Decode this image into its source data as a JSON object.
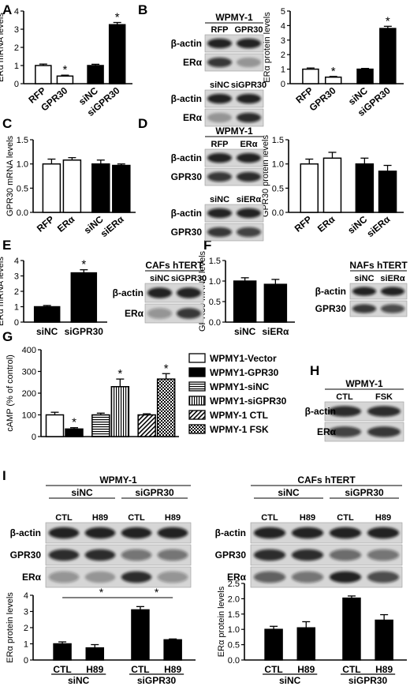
{
  "figure": {
    "panel_letters": [
      "A",
      "B",
      "C",
      "D",
      "E",
      "F",
      "G",
      "H",
      "I"
    ]
  },
  "colors": {
    "black": "#000000",
    "white": "#ffffff",
    "band": "#1a1a1a",
    "blot_bg": "#d8d8d8"
  },
  "chart_data": [
    {
      "id": "A",
      "type": "bar",
      "ylabel": "ERα mRNA levels",
      "ylim": [
        0,
        4
      ],
      "yticks": [
        0,
        1,
        2,
        3,
        4
      ],
      "categories": [
        "RFP",
        "GPR30",
        "siNC",
        "siGPR30"
      ],
      "values": [
        1.0,
        0.42,
        1.0,
        3.25
      ],
      "errors": [
        0.08,
        0.05,
        0.07,
        0.12
      ],
      "fills": [
        "white",
        "white",
        "black",
        "black"
      ],
      "significant": [
        false,
        true,
        false,
        true
      ]
    },
    {
      "id": "B",
      "type": "bar",
      "ylabel": "ERα protein levels",
      "ylim": [
        0,
        5
      ],
      "yticks": [
        0,
        1,
        2,
        3,
        4,
        5
      ],
      "categories": [
        "RFP",
        "GPR30",
        "siNC",
        "siGPR30"
      ],
      "values": [
        1.0,
        0.45,
        1.0,
        3.8
      ],
      "errors": [
        0.08,
        0.05,
        0.05,
        0.15
      ],
      "fills": [
        "white",
        "white",
        "black",
        "black"
      ],
      "significant": [
        false,
        true,
        false,
        true
      ]
    },
    {
      "id": "C",
      "type": "bar",
      "ylabel": "GPR30 mRNA levels",
      "ylim": [
        0,
        1.5
      ],
      "yticks": [
        "0.0",
        "0.5",
        "1.0",
        "1.5"
      ],
      "categories": [
        "RFP",
        "ERα",
        "siNC",
        "siERα"
      ],
      "values": [
        1.0,
        1.08,
        1.0,
        0.97
      ],
      "errors": [
        0.1,
        0.05,
        0.08,
        0.03
      ],
      "fills": [
        "white",
        "white",
        "black",
        "black"
      ],
      "significant": [
        false,
        false,
        false,
        false
      ]
    },
    {
      "id": "D",
      "type": "bar",
      "ylabel": "GPR30 protein levels",
      "ylim": [
        0,
        1.5
      ],
      "yticks": [
        "0.0",
        "0.5",
        "1.0",
        "1.5"
      ],
      "categories": [
        "RFP",
        "ERα",
        "siNC",
        "siERα"
      ],
      "values": [
        1.0,
        1.12,
        1.0,
        0.85
      ],
      "errors": [
        0.1,
        0.12,
        0.12,
        0.12
      ],
      "fills": [
        "white",
        "white",
        "black",
        "black"
      ],
      "significant": [
        false,
        false,
        false,
        false
      ]
    },
    {
      "id": "E",
      "type": "bar",
      "ylabel": "ERα mRNA levels",
      "ylim": [
        0,
        4
      ],
      "yticks": [
        0,
        1,
        2,
        3,
        4
      ],
      "categories": [
        "siNC",
        "siGPR30"
      ],
      "values": [
        1.0,
        3.2
      ],
      "errors": [
        0.08,
        0.2
      ],
      "fills": [
        "black",
        "black"
      ],
      "significant": [
        false,
        true
      ]
    },
    {
      "id": "F",
      "type": "bar",
      "ylabel": "GPR30 mRNA levels",
      "ylim": [
        0,
        1.5
      ],
      "yticks": [
        "0.0",
        "0.5",
        "1.0",
        "1.5"
      ],
      "categories": [
        "siNC",
        "siERα"
      ],
      "values": [
        1.0,
        0.92
      ],
      "errors": [
        0.08,
        0.12
      ],
      "fills": [
        "black",
        "black"
      ],
      "significant": [
        false,
        false
      ]
    },
    {
      "id": "G",
      "type": "bar",
      "ylabel": "cAMP (% of control)",
      "ylim": [
        0,
        400
      ],
      "yticks": [
        0,
        100,
        200,
        300,
        400
      ],
      "categories": [
        "WPMY1-Vector",
        "WPMY1-GPR30",
        "WPMY1-siNC",
        "WPMY1-siGPR30",
        "WPMY-1 CTL",
        "WPMY-1 FSK"
      ],
      "values": [
        100,
        35,
        100,
        230,
        100,
        265
      ],
      "errors": [
        12,
        6,
        8,
        35,
        5,
        25
      ],
      "fills": [
        "white",
        "black",
        "hstripe",
        "vstripe",
        "diag",
        "check"
      ],
      "significant": [
        false,
        true,
        false,
        true,
        false,
        true
      ],
      "legend": [
        "WPMY1-Vector",
        "WPMY1-GPR30",
        "WPMY1-siNC",
        "WPMY1-siGPR30",
        "WPMY-1 CTL",
        "WPMY-1 FSK"
      ]
    },
    {
      "id": "I1",
      "type": "bar",
      "ylabel": "ERα protein levels",
      "ylim": [
        0,
        4
      ],
      "yticks": [
        0,
        1,
        2,
        3,
        4
      ],
      "categories": [
        "CTL",
        "H89",
        "CTL",
        "H89"
      ],
      "groups": [
        "siNC",
        "siGPR30"
      ],
      "values": [
        1.0,
        0.75,
        3.1,
        1.25
      ],
      "errors": [
        0.12,
        0.2,
        0.2,
        0.05
      ],
      "fills": [
        "black",
        "black",
        "black",
        "black"
      ],
      "significant": [
        false,
        false,
        false,
        false
      ],
      "comparisons": [
        [
          0,
          2
        ],
        [
          2,
          3
        ]
      ]
    },
    {
      "id": "I2",
      "type": "bar",
      "ylabel": "ERα protein levels",
      "ylim": [
        0,
        2.5
      ],
      "yticks": [
        "0.0",
        "0.5",
        "1.0",
        "1.5",
        "2.0",
        "2.5"
      ],
      "categories": [
        "CTL",
        "H89",
        "CTL",
        "H89"
      ],
      "groups": [
        "siNC",
        "siGPR30"
      ],
      "values": [
        1.0,
        1.05,
        2.02,
        1.3
      ],
      "errors": [
        0.1,
        0.2,
        0.07,
        0.18
      ],
      "fills": [
        "black",
        "black",
        "black",
        "black"
      ],
      "significant": [
        false,
        false,
        false,
        false
      ],
      "comparisons": [
        [
          0,
          2
        ],
        [
          2,
          3
        ]
      ]
    }
  ],
  "blots": [
    {
      "id": "B",
      "title": "WPMY-1",
      "sections": [
        {
          "cols": [
            "RFP",
            "GPR30"
          ],
          "rows": [
            {
              "label": "β-actin",
              "bands": [
                0.9,
                0.9
              ]
            },
            {
              "label": "ERα",
              "bands": [
                0.8,
                0.3
              ]
            }
          ]
        },
        {
          "cols": [
            "siNC",
            "siGPR30"
          ],
          "rows": [
            {
              "label": "β-actin",
              "bands": [
                0.9,
                0.9
              ]
            },
            {
              "label": "ERα",
              "bands": [
                0.3,
                0.85
              ]
            }
          ]
        }
      ]
    },
    {
      "id": "D",
      "title": "WPMY-1",
      "sections": [
        {
          "cols": [
            "RFP",
            "ERα"
          ],
          "rows": [
            {
              "label": "β-actin",
              "bands": [
                0.9,
                0.9
              ]
            },
            {
              "label": "GPR30",
              "bands": [
                0.8,
                0.85
              ]
            }
          ]
        },
        {
          "cols": [
            "siNC",
            "siERα"
          ],
          "rows": [
            {
              "label": "β-actin",
              "bands": [
                0.9,
                0.9
              ]
            },
            {
              "label": "GPR30",
              "bands": [
                0.8,
                0.75
              ]
            }
          ]
        }
      ]
    },
    {
      "id": "E",
      "title": "CAFs hTERT",
      "sections": [
        {
          "cols": [
            "siNC",
            "siGPR30"
          ],
          "rows": [
            {
              "label": "β-actin",
              "bands": [
                0.9,
                0.9
              ]
            },
            {
              "label": "ERα",
              "bands": [
                0.35,
                0.8
              ]
            }
          ]
        }
      ]
    },
    {
      "id": "F",
      "title": "NAFs hTERT",
      "sections": [
        {
          "cols": [
            "siNC",
            "siERα"
          ],
          "rows": [
            {
              "label": "β-actin",
              "bands": [
                0.9,
                0.9
              ]
            },
            {
              "label": "GPR30",
              "bands": [
                0.8,
                0.7
              ]
            }
          ]
        }
      ]
    },
    {
      "id": "H",
      "title": "WPMY-1",
      "sections": [
        {
          "cols": [
            "CTL",
            "FSK"
          ],
          "rows": [
            {
              "label": "β-actin",
              "bands": [
                0.85,
                0.85
              ]
            },
            {
              "label": "ERα",
              "bands": [
                0.75,
                0.8
              ]
            }
          ]
        }
      ]
    },
    {
      "id": "I1",
      "title": "WPMY-1",
      "groups": [
        "siNC",
        "siGPR30"
      ],
      "sections": [
        {
          "cols": [
            "CTL",
            "H89",
            "CTL",
            "H89"
          ],
          "rows": [
            {
              "label": "β-actin",
              "bands": [
                0.9,
                0.9,
                0.9,
                0.9
              ]
            },
            {
              "label": "GPR30",
              "bands": [
                0.85,
                0.85,
                0.5,
                0.5
              ]
            },
            {
              "label": "ERα",
              "bands": [
                0.35,
                0.3,
                0.85,
                0.35
              ]
            }
          ]
        }
      ]
    },
    {
      "id": "I2",
      "title": "CAFs hTERT",
      "groups": [
        "siNC",
        "siGPR30"
      ],
      "sections": [
        {
          "cols": [
            "CTL",
            "H89",
            "CTL",
            "H89"
          ],
          "rows": [
            {
              "label": "β-actin",
              "bands": [
                0.9,
                0.9,
                0.9,
                0.9
              ]
            },
            {
              "label": "GPR30",
              "bands": [
                0.85,
                0.85,
                0.55,
                0.5
              ]
            },
            {
              "label": "ERα",
              "bands": [
                0.6,
                0.5,
                0.9,
                0.7
              ]
            }
          ]
        }
      ]
    }
  ]
}
